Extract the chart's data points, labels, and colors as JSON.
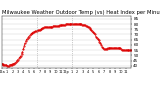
{
  "title": "Milwaukee Weather Outdoor Temp (vs) Heat Index per Minute (Last 24 Hours)",
  "title_fontsize": 3.8,
  "line_color": "#dd0000",
  "line_style": "--",
  "line_width": 0.6,
  "marker": ".",
  "marker_size": 1.0,
  "bg_color": "#ffffff",
  "plot_bg_color": "#ffffff",
  "grid_color": "#cccccc",
  "vline_color": "#999999",
  "vline_positions": [
    0.27,
    0.54
  ],
  "ylim": [
    38,
    88
  ],
  "yticks": [
    40,
    45,
    50,
    55,
    60,
    65,
    70,
    75,
    80,
    85
  ],
  "ytick_fontsize": 3.0,
  "xtick_fontsize": 2.5,
  "n_points": 144,
  "data_y": [
    42,
    42,
    41,
    41,
    41,
    41,
    40,
    40,
    40,
    41,
    41,
    41,
    42,
    42,
    42,
    43,
    44,
    45,
    46,
    47,
    48,
    49,
    51,
    53,
    56,
    59,
    62,
    64,
    66,
    67,
    68,
    69,
    70,
    71,
    71,
    72,
    72,
    73,
    73,
    73,
    74,
    74,
    74,
    75,
    75,
    76,
    76,
    77,
    77,
    77,
    77,
    77,
    77,
    77,
    77,
    77,
    77,
    78,
    78,
    78,
    78,
    78,
    78,
    78,
    79,
    79,
    79,
    79,
    79,
    79,
    79,
    80,
    80,
    80,
    80,
    80,
    80,
    80,
    80,
    80,
    80,
    80,
    80,
    80,
    80,
    80,
    80,
    80,
    80,
    79,
    79,
    79,
    79,
    78,
    78,
    77,
    77,
    76,
    75,
    74,
    73,
    72,
    71,
    70,
    68,
    67,
    66,
    65,
    63,
    62,
    60,
    58,
    57,
    56,
    56,
    56,
    56,
    57,
    57,
    57,
    57,
    57,
    57,
    57,
    57,
    57,
    57,
    57,
    57,
    57,
    57,
    57,
    56,
    55,
    55,
    55,
    55,
    55,
    55,
    55,
    55,
    55,
    55,
    55
  ],
  "xtick_labels": [
    "12a",
    "1",
    "2",
    "3",
    "4",
    "5",
    "6",
    "7",
    "8",
    "9",
    "10",
    "11",
    "12p",
    "1",
    "2",
    "3",
    "4",
    "5",
    "6",
    "7",
    "8",
    "9",
    "10",
    "11"
  ],
  "xtick_positions_frac": [
    0.0,
    0.0417,
    0.0833,
    0.125,
    0.167,
    0.208,
    0.25,
    0.292,
    0.333,
    0.375,
    0.417,
    0.458,
    0.5,
    0.542,
    0.583,
    0.625,
    0.667,
    0.708,
    0.75,
    0.792,
    0.833,
    0.875,
    0.917,
    0.958
  ]
}
